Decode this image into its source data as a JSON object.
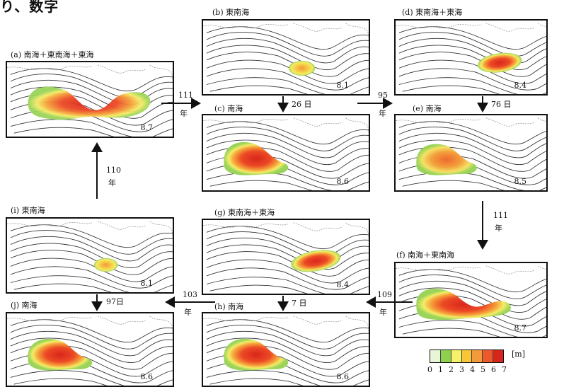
{
  "header": "り、数字",
  "panels": {
    "a": {
      "label": "(a) 南海＋東南海＋東海",
      "magnitude": "8.7"
    },
    "b": {
      "label": "(b) 東南海",
      "magnitude": "8.1"
    },
    "c": {
      "label": "(c) 南海",
      "magnitude": "8.6"
    },
    "d": {
      "label": "(d) 東南海＋東海",
      "magnitude": "8.4"
    },
    "e": {
      "label": "(e) 南海",
      "magnitude": "8.5"
    },
    "f": {
      "label": "(f) 南海＋東南海",
      "magnitude": "8.7"
    },
    "g": {
      "label": "(g) 東南海＋東海",
      "magnitude": "8.4"
    },
    "h": {
      "label": "(h) 南海",
      "magnitude": "8.6"
    },
    "i": {
      "label": "(i) 東南海",
      "magnitude": "8.1"
    },
    "j": {
      "label": "(j) 南海",
      "magnitude": "8.6"
    }
  },
  "intervals": {
    "a_to_c": {
      "num": "111",
      "unit": "年"
    },
    "b_to_c": "26 日",
    "c_to_e": {
      "num": "95",
      "unit": "年"
    },
    "d_to_e": "76 日",
    "e_to_f": {
      "num": "111",
      "unit": "年"
    },
    "f_to_h": {
      "num": "109",
      "unit": "年"
    },
    "g_to_h": "7 日",
    "h_to_j": {
      "num": "103",
      "unit": "年"
    },
    "i_to_j": "97日",
    "j_to_a": {
      "num": "110",
      "unit": "年"
    }
  },
  "legend": {
    "unit": "[m]",
    "ticks": [
      "0",
      "1",
      "2",
      "3",
      "4",
      "5",
      "6",
      "7"
    ],
    "colors": [
      "#ffffff",
      "#e8f5d6",
      "#8fd04e",
      "#f6f06a",
      "#f8c637",
      "#f39a3a",
      "#ec5a2c",
      "#d8261c"
    ]
  }
}
